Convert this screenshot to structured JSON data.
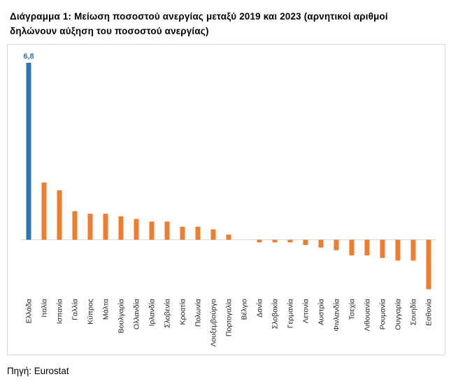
{
  "title": "Διάγραμμα 1: Μείωση ποσοστού ανεργίας μεταξύ 2019 και 2023 (αρνητικοί αριθμοί δηλώνουν αύξηση του ποσοστού ανεργίας)",
  "source": "Πηγή: Eurostat",
  "colors": {
    "highlight": "#2e75b6",
    "bar": "#ed7d31",
    "axis": "#d9d9d9",
    "frame": "#d9d9d9"
  },
  "chart_data": {
    "type": "bar",
    "title": "Διάγραμμα 1: Μείωση ποσοστού ανεργίας μεταξύ 2019 και 2023 (αρνητικοί αριθμοί δηλώνουν αύξηση του ποσοστού ανεργίας)",
    "xlabel": "",
    "ylabel": "",
    "ylim": [
      -2.0,
      6.8
    ],
    "grid": false,
    "legend": "none",
    "categories": [
      "Ελλάδα",
      "Ιταλία",
      "Ισπανία",
      "Γαλλία",
      "Κύπρος",
      "Μάλτα",
      "Βουλγαρία",
      "Ολλανδία",
      "Ιρλανδία",
      "Σλοβενία",
      "Κροατία",
      "Πολωνία",
      "Λουξεμβούργο",
      "Πορτογαλία",
      "Βέλγιο",
      "Δανία",
      "Σλοβακία",
      "Γερμανία",
      "Λετονία",
      "Αυστρία",
      "Φινλανδία",
      "Τσεχία",
      "Λιθουανία",
      "Ρουμανία",
      "Ουγγαρία",
      "Σουηδία",
      "Εσθονία"
    ],
    "values": [
      6.8,
      2.2,
      1.9,
      1.1,
      1.0,
      1.0,
      0.9,
      0.8,
      0.7,
      0.7,
      0.5,
      0.5,
      0.4,
      0.2,
      0.0,
      -0.1,
      -0.1,
      -0.1,
      -0.2,
      -0.3,
      -0.4,
      -0.6,
      -0.6,
      -0.7,
      -0.8,
      -0.8,
      -1.9
    ],
    "data_labels": [
      {
        "index": 0,
        "text": "6,8"
      }
    ],
    "highlight_index": 0
  }
}
